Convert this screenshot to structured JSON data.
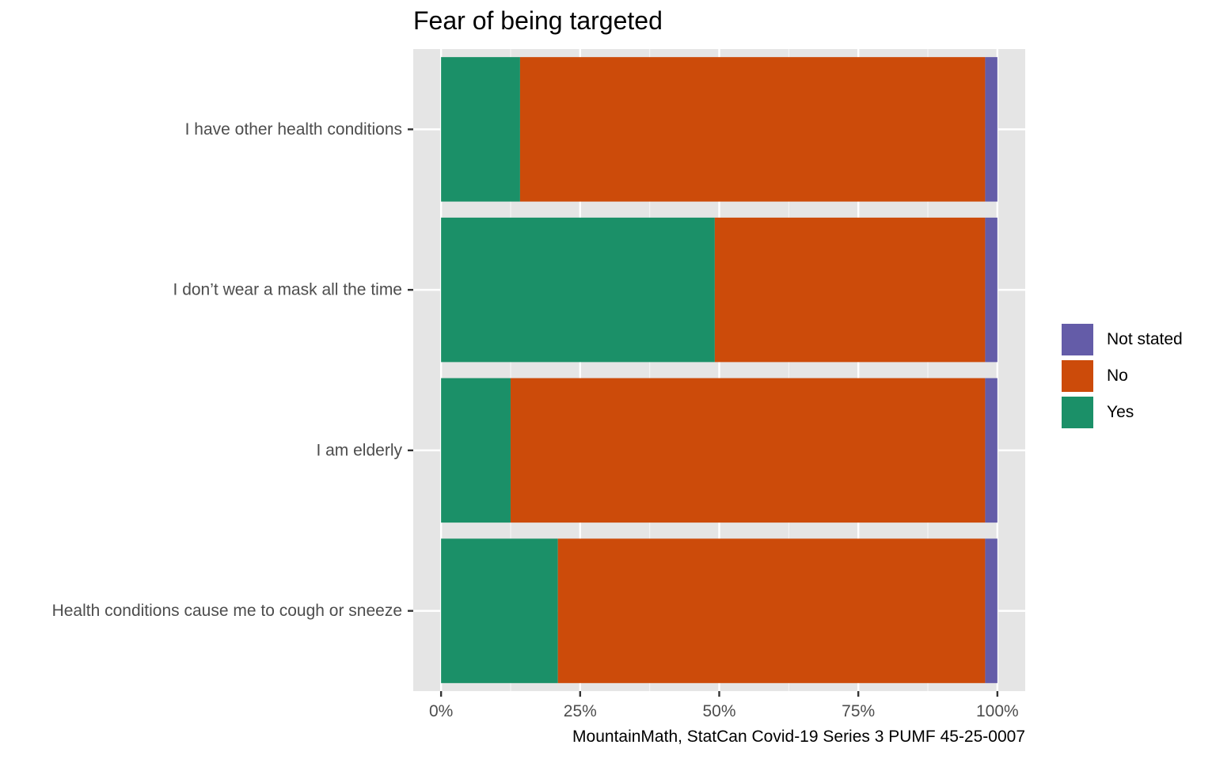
{
  "chart_data": {
    "type": "bar",
    "orientation": "horizontal",
    "stacked": "percent",
    "title": "Fear of being targeted",
    "caption": "MountainMath, StatCan Covid-19 Series 3 PUMF 45-25-0007",
    "categories": [
      "I have other health conditions",
      "I don’t wear a mask all the time",
      "I am elderly",
      "Health conditions cause me to cough or sneeze"
    ],
    "series": [
      {
        "name": "Yes",
        "color": "#1b9068",
        "values": [
          14.2,
          49.2,
          12.5,
          21.0
        ]
      },
      {
        "name": "No",
        "color": "#cc4b0a",
        "values": [
          83.6,
          48.6,
          85.3,
          76.8
        ]
      },
      {
        "name": "Not stated",
        "color": "#645ca8",
        "values": [
          2.2,
          2.2,
          2.2,
          2.2
        ]
      }
    ],
    "legend_order": [
      "Not stated",
      "No",
      "Yes"
    ],
    "xlim": [
      -5,
      105
    ],
    "x_ticks": [
      0,
      25,
      50,
      75,
      100
    ],
    "x_tick_labels": [
      "0%",
      "25%",
      "50%",
      "75%",
      "100%"
    ],
    "grid": true,
    "legend_position": "right",
    "panel_background": "#e5e5e5"
  }
}
